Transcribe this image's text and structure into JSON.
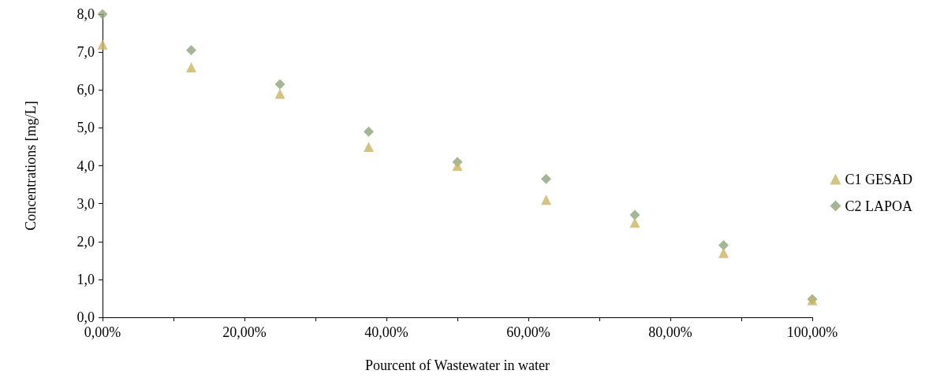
{
  "chart_data": {
    "type": "scatter",
    "xlabel": "Pourcent of Wastewater in water",
    "ylabel": "Concentrations [mg/L]",
    "x": [
      0,
      12.5,
      25,
      37.5,
      50,
      62.5,
      75,
      87.5,
      100
    ],
    "series": [
      {
        "name": "C1 GESAD",
        "color": "#cbb464",
        "marker": "triangle",
        "values": [
          7.2,
          6.6,
          5.9,
          4.5,
          4.0,
          3.1,
          2.5,
          1.7,
          0.45
        ]
      },
      {
        "name": "C2 LAPOA",
        "color": "#8fa47c",
        "marker": "diamond",
        "values": [
          8.0,
          7.05,
          6.15,
          4.9,
          4.1,
          3.65,
          2.7,
          1.9,
          0.48
        ]
      }
    ],
    "xlim": [
      0,
      100
    ],
    "xticks": [
      {
        "value": 0,
        "label": "0,00%"
      },
      {
        "value": 10,
        "label": null
      },
      {
        "value": 20,
        "label": "20,00%"
      },
      {
        "value": 30,
        "label": null
      },
      {
        "value": 40,
        "label": "40,00%"
      },
      {
        "value": 50,
        "label": null
      },
      {
        "value": 60,
        "label": "60,00%"
      },
      {
        "value": 70,
        "label": null
      },
      {
        "value": 80,
        "label": "80,00%"
      },
      {
        "value": 90,
        "label": null
      },
      {
        "value": 100,
        "label": "100,00%"
      }
    ],
    "ylim": [
      0,
      8
    ],
    "yticks": [
      {
        "value": 0,
        "label": "0,0"
      },
      {
        "value": 1,
        "label": "1,0"
      },
      {
        "value": 2,
        "label": "2,0"
      },
      {
        "value": 3,
        "label": "3,0"
      },
      {
        "value": 4,
        "label": "4,0"
      },
      {
        "value": 5,
        "label": "5,0"
      },
      {
        "value": 6,
        "label": "6,0"
      },
      {
        "value": 7,
        "label": "7,0"
      },
      {
        "value": 8,
        "label": "8,0"
      }
    ],
    "grid": false,
    "legend": "right"
  }
}
